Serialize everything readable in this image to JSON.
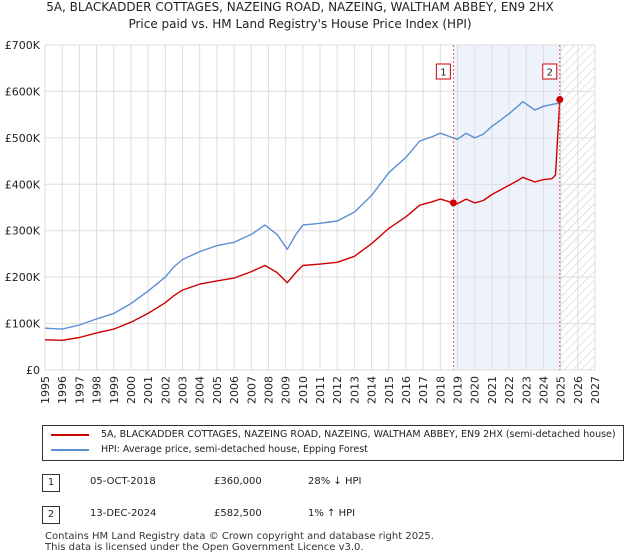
{
  "chart_data": {
    "type": "line",
    "title": "5A, BLACKADDER COTTAGES, NAZEING ROAD, NAZEING, WALTHAM ABBEY, EN9 2HX",
    "subtitle": "Price paid vs. HM Land Registry's House Price Index (HPI)",
    "xlabel": "",
    "ylabel": "",
    "xlim": [
      1995,
      2027
    ],
    "ylim": [
      0,
      700000
    ],
    "y_ticks": [
      {
        "value": 0,
        "label": "£0"
      },
      {
        "value": 100000,
        "label": "£100K"
      },
      {
        "value": 200000,
        "label": "£200K"
      },
      {
        "value": 300000,
        "label": "£300K"
      },
      {
        "value": 400000,
        "label": "£400K"
      },
      {
        "value": 500000,
        "label": "£500K"
      },
      {
        "value": 600000,
        "label": "£600K"
      },
      {
        "value": 700000,
        "label": "£700K"
      }
    ],
    "x_ticks": [
      "1995",
      "1996",
      "1997",
      "1998",
      "1999",
      "2000",
      "2001",
      "2002",
      "2003",
      "2004",
      "2005",
      "2006",
      "2007",
      "2008",
      "2009",
      "2010",
      "2011",
      "2012",
      "2013",
      "2014",
      "2015",
      "2016",
      "2017",
      "2018",
      "2019",
      "2020",
      "2021",
      "2022",
      "2023",
      "2024",
      "2025",
      "2026",
      "2027"
    ],
    "grid": true,
    "shaded_period": [
      2018.76,
      2024.95
    ],
    "hatched_future_from": 2024.95,
    "series": [
      {
        "name": "5A, BLACKADDER COTTAGES, NAZEING ROAD, NAZEING, WALTHAM ABBEY, EN9 2HX (semi-detached house)",
        "color": "#cc0000",
        "x": [
          1995.0,
          1996.0,
          1997.0,
          1998.0,
          1999.0,
          2000.0,
          2001.0,
          2002.0,
          2002.5,
          2003.0,
          2004.0,
          2005.0,
          2006.0,
          2007.0,
          2007.8,
          2008.5,
          2009.1,
          2009.6,
          2010.0,
          2011.0,
          2012.0,
          2013.0,
          2014.0,
          2015.0,
          2016.0,
          2016.8,
          2017.5,
          2018.0,
          2018.76,
          2019.0,
          2019.5,
          2020.0,
          2020.5,
          2021.0,
          2021.5,
          2022.0,
          2022.5,
          2022.8,
          2023.5,
          2024.0,
          2024.5,
          2024.7,
          2024.95,
          2025.0
        ],
        "values": [
          65000,
          64000,
          70000,
          80000,
          88000,
          103000,
          122000,
          145000,
          160000,
          172000,
          185000,
          192000,
          198000,
          212000,
          225000,
          210000,
          188000,
          210000,
          225000,
          228000,
          232000,
          245000,
          272000,
          305000,
          330000,
          355000,
          362000,
          368000,
          360000,
          358000,
          368000,
          360000,
          365000,
          378000,
          388000,
          398000,
          408000,
          415000,
          405000,
          410000,
          412000,
          420000,
          582500,
          590000
        ]
      },
      {
        "name": "HPI: Average price, semi-detached house, Epping Forest",
        "color": "#5b8fd4",
        "x": [
          1995.0,
          1996.0,
          1997.0,
          1998.0,
          1999.0,
          2000.0,
          2001.0,
          2002.0,
          2002.5,
          2003.0,
          2004.0,
          2005.0,
          2006.0,
          2007.0,
          2007.8,
          2008.5,
          2009.1,
          2009.6,
          2010.0,
          2011.0,
          2012.0,
          2013.0,
          2014.0,
          2015.0,
          2016.0,
          2016.8,
          2017.5,
          2018.0,
          2018.76,
          2019.0,
          2019.5,
          2020.0,
          2020.5,
          2021.0,
          2021.5,
          2022.0,
          2022.5,
          2022.8,
          2023.5,
          2024.0,
          2024.5,
          2024.95,
          2025.0
        ],
        "values": [
          90000,
          88000,
          97000,
          110000,
          122000,
          143000,
          170000,
          200000,
          222000,
          238000,
          255000,
          268000,
          275000,
          292000,
          312000,
          292000,
          260000,
          292000,
          312000,
          316000,
          321000,
          340000,
          376000,
          425000,
          458000,
          493000,
          502000,
          510000,
          500000,
          497000,
          510000,
          500000,
          508000,
          525000,
          538000,
          552000,
          568000,
          578000,
          560000,
          568000,
          572000,
          575000,
          590000
        ]
      }
    ],
    "sale_points": [
      {
        "x": 2018.76,
        "value": 360000
      },
      {
        "x": 2024.95,
        "value": 582500
      }
    ],
    "annotations": [
      {
        "label": "1",
        "x": 2018.76
      },
      {
        "label": "2",
        "x": 2024.95
      }
    ]
  },
  "legend": {
    "entries": [
      {
        "label": "5A, BLACKADDER COTTAGES, NAZEING ROAD, NAZEING, WALTHAM ABBEY, EN9 2HX (semi-detached house)",
        "color": "#cc0000"
      },
      {
        "label": "HPI: Average price, semi-detached house, Epping Forest",
        "color": "#5b8fd4"
      }
    ]
  },
  "transactions": [
    {
      "num": "1",
      "date": "05-OCT-2018",
      "price": "£360,000",
      "hpi": "28% ↓ HPI"
    },
    {
      "num": "2",
      "date": "13-DEC-2024",
      "price": "£582,500",
      "hpi": "1% ↑ HPI"
    }
  ],
  "footer": {
    "line1": "Contains HM Land Registry data © Crown copyright and database right 2025.",
    "line2": "This data is licensed under the Open Government Licence v3.0."
  }
}
